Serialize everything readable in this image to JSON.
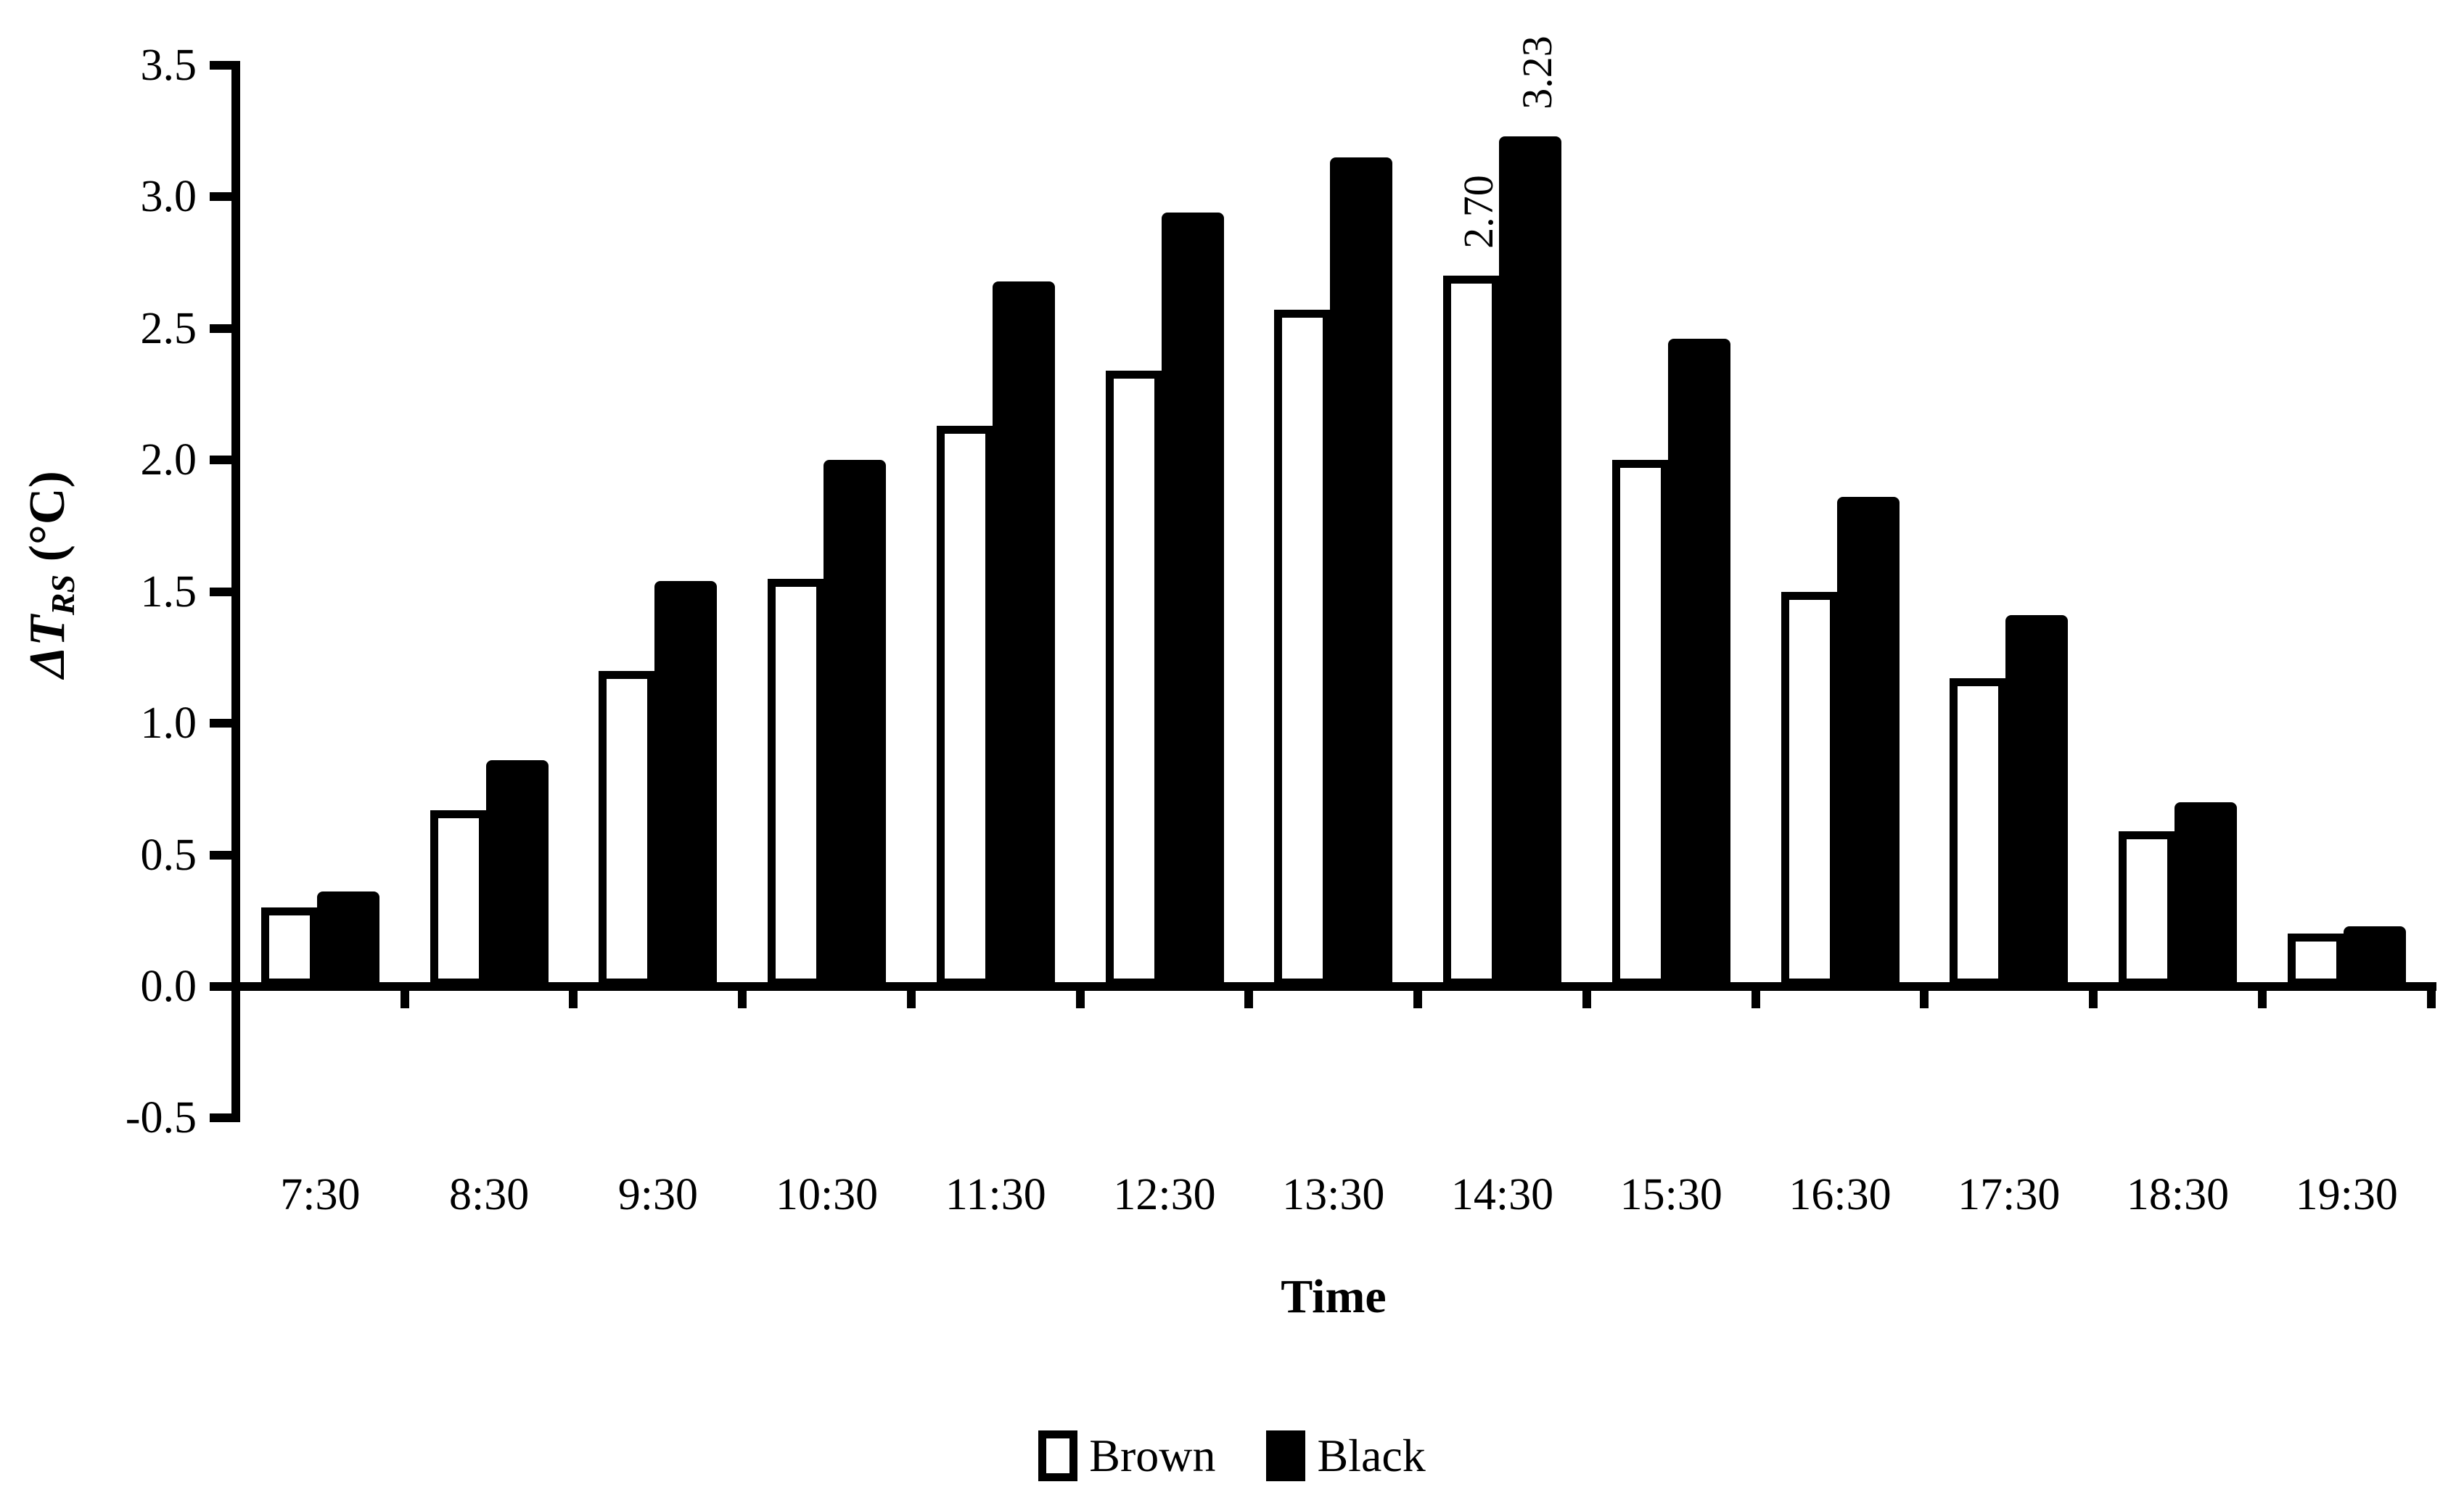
{
  "figure": {
    "background": "#ffffff",
    "ink": "#000000"
  },
  "chart_data": {
    "type": "bar",
    "title": "",
    "categories": [
      "7:30",
      "8:30",
      "9:30",
      "10:30",
      "11:30",
      "12:30",
      "13:30",
      "14:30",
      "15:30",
      "16:30",
      "17:30",
      "18:30",
      "19:30"
    ],
    "series": [
      {
        "name": "Brown",
        "fill": "#ffffff",
        "stroke": "#000000",
        "values": [
          0.3,
          0.67,
          1.2,
          1.55,
          2.13,
          2.34,
          2.57,
          2.7,
          2.0,
          1.5,
          1.17,
          0.59,
          0.2
        ]
      },
      {
        "name": "Black",
        "fill": "#000000",
        "stroke": "#000000",
        "values": [
          0.36,
          0.86,
          1.54,
          2.0,
          2.68,
          2.94,
          3.15,
          3.23,
          2.46,
          1.86,
          1.41,
          0.7,
          0.23
        ]
      }
    ],
    "annotations": [
      {
        "series": "Brown",
        "category": "14:30",
        "text": "2.70",
        "rotation_deg": -90
      },
      {
        "series": "Black",
        "category": "14:30",
        "text": "3.23",
        "rotation_deg": -90
      }
    ],
    "xlabel": "Time",
    "ylabel": {
      "prefix": "ΔT",
      "subscript": "RS",
      "suffix": " (°C)"
    },
    "y_ticks": [
      "3.5",
      "3.0",
      "2.5",
      "2.0",
      "1.5",
      "1.0",
      "0.5",
      "0.0",
      "-0.5"
    ],
    "ylim": [
      -0.5,
      3.5
    ],
    "y_tick_step": 0.5,
    "grid": false,
    "legend_position": "bottom"
  },
  "legend": {
    "items": [
      {
        "label": "Brown",
        "swatch_fill": "#ffffff"
      },
      {
        "label": "Black",
        "swatch_fill": "#000000"
      }
    ]
  }
}
